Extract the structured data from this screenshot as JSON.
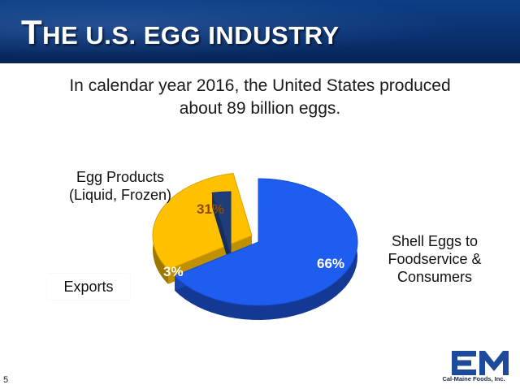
{
  "header": {
    "title_first_letter": "T",
    "title_rest": "HE U.S. EGG INDUSTRY"
  },
  "subtitle_line1": "In calendar year 2016, the United States produced",
  "subtitle_line2": "about 89 billion eggs.",
  "chart_data": {
    "type": "pie",
    "title": "",
    "slices": [
      {
        "label": "Shell Eggs to Foodservice & Consumers",
        "value": 66,
        "display": "66%",
        "color": "#1f5cf0"
      },
      {
        "label": "Egg Products (Liquid, Frozen)",
        "value": 31,
        "display": "31%",
        "color": "#ffc000"
      },
      {
        "label": "Exports",
        "value": 3,
        "display": "3%",
        "color": "#1f3d7a"
      }
    ]
  },
  "labels": {
    "egg_products_line1": "Egg Products",
    "egg_products_line2": "(Liquid, Frozen)",
    "shell_line1": "Shell Eggs to",
    "shell_line2": "Foodservice &",
    "shell_line3": "Consumers",
    "exports": "Exports"
  },
  "footer": {
    "page_number": "5",
    "logo_text": "Cal-Maine Foods, Inc.",
    "logo_color": "#1d4a9a"
  }
}
